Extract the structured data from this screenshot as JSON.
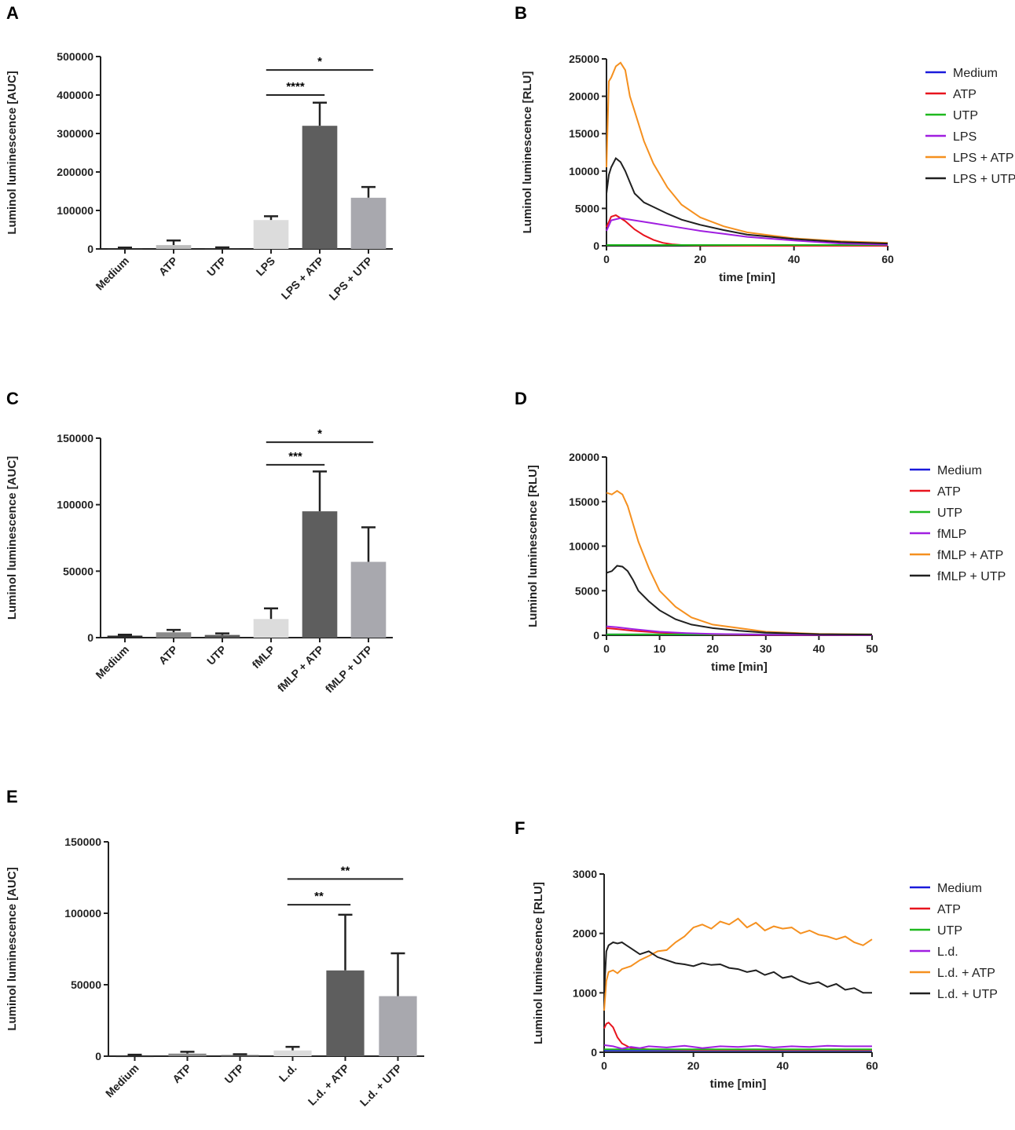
{
  "chart_data": [
    {
      "panel": "A",
      "type": "bar",
      "title": "",
      "xlabel": "",
      "ylabel": "Luminol luminescence [AUC]",
      "ylim": [
        0,
        500000
      ],
      "yticks": [
        0,
        100000,
        200000,
        300000,
        400000,
        500000
      ],
      "ytick_labels": [
        "0",
        "100000",
        "200000",
        "300000",
        "400000",
        "500000"
      ],
      "categories": [
        "Medium",
        "ATP",
        "UTP",
        "LPS",
        "LPS + ATP",
        "LPS + UTP"
      ],
      "values": [
        2000,
        10000,
        2000,
        75000,
        320000,
        133000
      ],
      "errors": [
        1500,
        12000,
        2000,
        10000,
        60000,
        28000
      ],
      "colors": [
        "#2b2b2b",
        "#bdbdbd",
        "#2b2b2b",
        "#dcdcdc",
        "#5e5e5e",
        "#a8a8ae"
      ],
      "significance": [
        {
          "from": 3,
          "to": 4,
          "label": "****",
          "level": 400000
        },
        {
          "from": 3,
          "to": 5,
          "label": "*",
          "level": 465000
        }
      ]
    },
    {
      "panel": "B",
      "type": "line",
      "title": "",
      "xlabel": "time [min]",
      "ylabel": "Luminol luminescence [RLU]",
      "xlim": [
        0,
        60
      ],
      "ylim": [
        0,
        25000
      ],
      "xticks": [
        0,
        20,
        40,
        60
      ],
      "xtick_labels": [
        "0",
        "20",
        "40",
        "60"
      ],
      "yticks": [
        0,
        5000,
        10000,
        15000,
        20000,
        25000
      ],
      "ytick_labels": [
        "0",
        "5000",
        "10000",
        "15000",
        "20000",
        "25000"
      ],
      "series": [
        {
          "name": "Medium",
          "color": "#1a1adb",
          "x": [
            0,
            10,
            20,
            30,
            40,
            50,
            60
          ],
          "y": [
            100,
            100,
            100,
            100,
            100,
            100,
            100
          ]
        },
        {
          "name": "ATP",
          "color": "#e8141e",
          "x": [
            0,
            1,
            2,
            4,
            6,
            8,
            10,
            12,
            14,
            16,
            20,
            30,
            60
          ],
          "y": [
            2500,
            3900,
            4100,
            3300,
            2200,
            1400,
            800,
            400,
            200,
            100,
            50,
            0,
            0
          ]
        },
        {
          "name": "UTP",
          "color": "#1fb81f",
          "x": [
            0,
            10,
            20,
            30,
            40,
            50,
            60
          ],
          "y": [
            100,
            100,
            100,
            100,
            100,
            100,
            100
          ]
        },
        {
          "name": "LPS",
          "color": "#a01ee0",
          "x": [
            0,
            1,
            3,
            6,
            10,
            15,
            20,
            25,
            30,
            40,
            50,
            60
          ],
          "y": [
            2000,
            3400,
            3700,
            3400,
            3000,
            2500,
            2000,
            1600,
            1200,
            700,
            300,
            150
          ]
        },
        {
          "name": "LPS + ATP",
          "color": "#f5901f",
          "x": [
            0,
            0.5,
            1,
            2,
            3,
            4,
            5,
            6,
            8,
            10,
            13,
            16,
            20,
            25,
            30,
            35,
            40,
            50,
            60
          ],
          "y": [
            10500,
            22000,
            22500,
            24000,
            24500,
            23500,
            20000,
            18000,
            14000,
            11000,
            7800,
            5500,
            3800,
            2600,
            1800,
            1400,
            1000,
            600,
            400
          ]
        },
        {
          "name": "LPS + UTP",
          "color": "#202020",
          "x": [
            0,
            0.5,
            1,
            2,
            3,
            4,
            5,
            6,
            8,
            10,
            13,
            16,
            20,
            25,
            30,
            40,
            50,
            60
          ],
          "y": [
            7000,
            9500,
            10500,
            11700,
            11200,
            10000,
            8500,
            7000,
            5800,
            5200,
            4300,
            3500,
            2800,
            2100,
            1500,
            900,
            500,
            300
          ]
        }
      ]
    },
    {
      "panel": "C",
      "type": "bar",
      "title": "",
      "xlabel": "",
      "ylabel": "Luminol luminescence [AUC]",
      "ylim": [
        0,
        150000
      ],
      "yticks": [
        0,
        50000,
        100000,
        150000
      ],
      "ytick_labels": [
        "0",
        "50000",
        "100000",
        "150000"
      ],
      "categories": [
        "Medium",
        "ATP",
        "UTP",
        "fMLP",
        "fMLP + ATP",
        "fMLP + UTP"
      ],
      "values": [
        1500,
        4000,
        2000,
        14000,
        95000,
        57000
      ],
      "errors": [
        700,
        1800,
        1200,
        8000,
        30000,
        26000
      ],
      "colors": [
        "#2b2b2b",
        "#8a8a8a",
        "#5a5a5a",
        "#dcdcdc",
        "#5e5e5e",
        "#a8a8ae"
      ],
      "significance": [
        {
          "from": 3,
          "to": 4,
          "label": "***",
          "level": 130000
        },
        {
          "from": 3,
          "to": 5,
          "label": "*",
          "level": 147000
        }
      ]
    },
    {
      "panel": "D",
      "type": "line",
      "title": "",
      "xlabel": "time [min]",
      "ylabel": "Luminol luminescence [RLU]",
      "xlim": [
        0,
        50
      ],
      "ylim": [
        0,
        20000
      ],
      "xticks": [
        0,
        10,
        20,
        30,
        40,
        50
      ],
      "xtick_labels": [
        "0",
        "10",
        "20",
        "30",
        "40",
        "50"
      ],
      "yticks": [
        0,
        5000,
        10000,
        15000,
        20000
      ],
      "ytick_labels": [
        "0",
        "5000",
        "10000",
        "15000",
        "20000"
      ],
      "series": [
        {
          "name": "Medium",
          "color": "#1a1adb",
          "x": [
            0,
            10,
            20,
            30,
            40,
            50
          ],
          "y": [
            100,
            100,
            100,
            100,
            100,
            100
          ]
        },
        {
          "name": "ATP",
          "color": "#e8141e",
          "x": [
            0,
            2,
            5,
            10,
            15,
            20,
            30,
            50
          ],
          "y": [
            800,
            700,
            500,
            300,
            150,
            80,
            40,
            20
          ]
        },
        {
          "name": "UTP",
          "color": "#1fb81f",
          "x": [
            0,
            10,
            20,
            30,
            40,
            50
          ],
          "y": [
            100,
            100,
            100,
            100,
            100,
            100
          ]
        },
        {
          "name": "fMLP",
          "color": "#a01ee0",
          "x": [
            0,
            2,
            5,
            10,
            15,
            20,
            30,
            50
          ],
          "y": [
            1000,
            900,
            700,
            400,
            250,
            150,
            70,
            30
          ]
        },
        {
          "name": "fMLP + ATP",
          "color": "#f5901f",
          "x": [
            0,
            1,
            2,
            3,
            4,
            5,
            6,
            8,
            10,
            13,
            16,
            20,
            25,
            30,
            40,
            50
          ],
          "y": [
            16000,
            15800,
            16200,
            15800,
            14500,
            12500,
            10500,
            7500,
            5000,
            3200,
            2000,
            1200,
            800,
            400,
            150,
            100
          ]
        },
        {
          "name": "fMLP + UTP",
          "color": "#202020",
          "x": [
            0,
            1,
            2,
            3,
            4,
            5,
            6,
            8,
            10,
            13,
            16,
            20,
            25,
            30,
            40,
            50
          ],
          "y": [
            7000,
            7200,
            7800,
            7700,
            7200,
            6200,
            5000,
            3800,
            2800,
            1800,
            1200,
            800,
            500,
            300,
            120,
            80
          ]
        }
      ]
    },
    {
      "panel": "E",
      "type": "bar",
      "title": "",
      "xlabel": "",
      "ylabel": "Luminol luminescence [AUC]",
      "ylim": [
        0,
        150000
      ],
      "yticks": [
        0,
        50000,
        100000,
        150000
      ],
      "ytick_labels": [
        "0",
        "50000",
        "100000",
        "150000"
      ],
      "categories": [
        "Medium",
        "ATP",
        "UTP",
        "L.d.",
        "L.d. + ATP",
        "L.d. + UTP"
      ],
      "values": [
        500,
        1800,
        800,
        4000,
        60000,
        42000
      ],
      "errors": [
        500,
        1300,
        600,
        2500,
        39000,
        30000
      ],
      "colors": [
        "#2b2b2b",
        "#8a8a8a",
        "#5a5a5a",
        "#dcdcdc",
        "#5e5e5e",
        "#a8a8ae"
      ],
      "significance": [
        {
          "from": 3,
          "to": 4,
          "label": "**",
          "level": 106000
        },
        {
          "from": 3,
          "to": 5,
          "label": "**",
          "level": 124000
        }
      ]
    },
    {
      "panel": "F",
      "type": "line",
      "title": "",
      "xlabel": "time [min]",
      "ylabel": "Luminol luminescence [RLU]",
      "xlim": [
        0,
        60
      ],
      "ylim": [
        0,
        3000
      ],
      "xticks": [
        0,
        20,
        40,
        60
      ],
      "xtick_labels": [
        "0",
        "20",
        "40",
        "60"
      ],
      "yticks": [
        0,
        1000,
        2000,
        3000
      ],
      "ytick_labels": [
        "0",
        "1000",
        "2000",
        "3000"
      ],
      "series": [
        {
          "name": "Medium",
          "color": "#1a1adb",
          "x": [
            0,
            10,
            20,
            30,
            40,
            50,
            60
          ],
          "y": [
            30,
            30,
            30,
            30,
            30,
            30,
            30
          ]
        },
        {
          "name": "ATP",
          "color": "#e8141e",
          "x": [
            0,
            0.5,
            1,
            2,
            3,
            4,
            6,
            10,
            20,
            40,
            60
          ],
          "y": [
            400,
            480,
            500,
            420,
            250,
            150,
            70,
            50,
            40,
            40,
            40
          ]
        },
        {
          "name": "UTP",
          "color": "#1fb81f",
          "x": [
            0,
            10,
            20,
            30,
            40,
            50,
            60
          ],
          "y": [
            50,
            50,
            50,
            50,
            50,
            50,
            50
          ]
        },
        {
          "name": "L.d.",
          "color": "#a01ee0",
          "x": [
            0,
            2,
            4,
            6,
            8,
            10,
            14,
            18,
            22,
            26,
            30,
            34,
            38,
            42,
            46,
            50,
            54,
            60
          ],
          "y": [
            120,
            100,
            60,
            90,
            70,
            100,
            80,
            110,
            70,
            100,
            90,
            110,
            80,
            100,
            90,
            110,
            100,
            100
          ]
        },
        {
          "name": "L.d. + ATP",
          "color": "#f5901f",
          "x": [
            0,
            0.5,
            1,
            2,
            3,
            4,
            6,
            8,
            10,
            12,
            14,
            16,
            18,
            20,
            22,
            24,
            26,
            28,
            30,
            32,
            34,
            36,
            38,
            40,
            42,
            44,
            46,
            48,
            50,
            52,
            54,
            56,
            58,
            60
          ],
          "y": [
            700,
            1200,
            1350,
            1380,
            1330,
            1400,
            1450,
            1550,
            1620,
            1700,
            1720,
            1850,
            1950,
            2100,
            2150,
            2080,
            2200,
            2150,
            2250,
            2100,
            2180,
            2050,
            2120,
            2080,
            2100,
            2000,
            2050,
            1980,
            1950,
            1900,
            1950,
            1850,
            1800,
            1900
          ]
        },
        {
          "name": "L.d. + UTP",
          "color": "#202020",
          "x": [
            0,
            0.5,
            1,
            2,
            3,
            4,
            5,
            6,
            8,
            10,
            12,
            14,
            16,
            18,
            20,
            22,
            24,
            26,
            28,
            30,
            32,
            34,
            36,
            38,
            40,
            42,
            44,
            46,
            48,
            50,
            52,
            54,
            56,
            58,
            60
          ],
          "y": [
            1000,
            1700,
            1800,
            1850,
            1830,
            1850,
            1800,
            1750,
            1650,
            1700,
            1600,
            1550,
            1500,
            1480,
            1450,
            1500,
            1470,
            1480,
            1420,
            1400,
            1350,
            1380,
            1300,
            1350,
            1250,
            1280,
            1200,
            1150,
            1180,
            1100,
            1150,
            1050,
            1080,
            1000,
            1000
          ]
        }
      ]
    }
  ]
}
